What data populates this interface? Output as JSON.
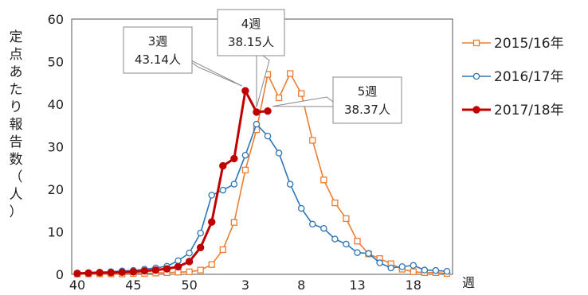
{
  "chart_data": {
    "type": "line",
    "ylabel": "定点あたり報告数（人）",
    "xlabel": "週",
    "ylim": [
      0,
      60
    ],
    "yticks": [
      "0",
      "10",
      "20",
      "30",
      "40",
      "50",
      "60"
    ],
    "xtick_labels": [
      "40",
      "45",
      "50",
      "3",
      "8",
      "13",
      "18"
    ],
    "week_order": [
      40,
      41,
      42,
      43,
      44,
      45,
      46,
      47,
      48,
      49,
      50,
      51,
      52,
      1,
      2,
      3,
      4,
      5,
      6,
      7,
      8,
      9,
      10,
      11,
      12,
      13,
      14,
      15,
      16,
      17,
      18,
      19,
      20,
      21
    ],
    "grid": false,
    "legend_position": "right",
    "series": [
      {
        "name": "2015/16年",
        "color": "#ED7D31",
        "marker": "square-open",
        "values": [
          0.1,
          0.1,
          0.1,
          0.1,
          0.1,
          0.2,
          0.2,
          0.3,
          0.4,
          0.5,
          0.6,
          1.0,
          2.3,
          5.8,
          12.2,
          24.5,
          34.0,
          47.0,
          41.5,
          47.2,
          42.5,
          31.5,
          22.2,
          16.8,
          13.1,
          7.8,
          4.8,
          3.7,
          2.5,
          1.2,
          0.6,
          0.4,
          0.4,
          0.2
        ]
      },
      {
        "name": "2016/17年",
        "color": "#2E75B6",
        "marker": "circle-open",
        "values": [
          0.3,
          0.4,
          0.5,
          0.6,
          0.8,
          0.9,
          1.2,
          1.5,
          1.9,
          3.2,
          5.0,
          9.7,
          18.6,
          19.8,
          21.2,
          28.0,
          35.3,
          32.5,
          28.5,
          21.2,
          15.5,
          11.8,
          10.8,
          8.3,
          7.1,
          5.1,
          4.9,
          2.7,
          1.5,
          1.8,
          2.1,
          1.0,
          0.9,
          0.7
        ]
      },
      {
        "name": "2017/18年",
        "color": "#C00000",
        "marker": "circle-filled",
        "values": [
          0.2,
          0.3,
          0.4,
          0.4,
          0.5,
          0.6,
          0.8,
          1.0,
          1.3,
          1.8,
          3.0,
          6.3,
          12.3,
          25.5,
          27.2,
          43.14,
          38.15,
          38.37
        ]
      }
    ],
    "annotations": [
      {
        "week_label": "3週",
        "value_label": "43.14人",
        "week": 3,
        "value": 43.14
      },
      {
        "week_label": "4週",
        "value_label": "38.15人",
        "week": 4,
        "value": 38.15
      },
      {
        "week_label": "5週",
        "value_label": "38.37人",
        "week": 5,
        "value": 38.37
      }
    ]
  }
}
